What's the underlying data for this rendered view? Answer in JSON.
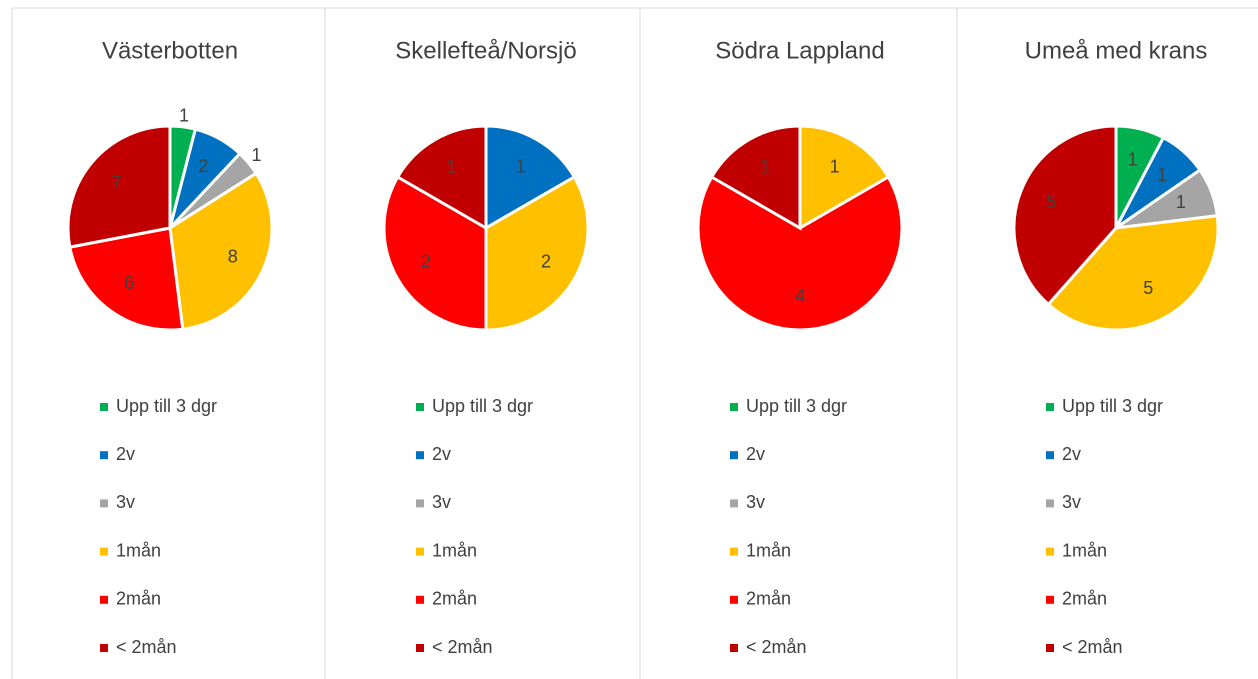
{
  "chart_data": [
    {
      "type": "pie",
      "title": "Västerbotten",
      "categories": [
        "Upp till 3 dgr",
        "2v",
        "3v",
        "1mån",
        "2mån",
        "< 2mån"
      ],
      "values": [
        1,
        2,
        1,
        8,
        6,
        7
      ],
      "colors": [
        "#00b050",
        "#0070c0",
        "#a5a5a5",
        "#ffc000",
        "#ff0000",
        "#c00000"
      ]
    },
    {
      "type": "pie",
      "title": "Skellefteå/Norsjö",
      "categories": [
        "Upp till 3 dgr",
        "2v",
        "3v",
        "1mån",
        "2mån",
        "< 2mån"
      ],
      "values": [
        0,
        1,
        0,
        2,
        2,
        1
      ],
      "colors": [
        "#00b050",
        "#0070c0",
        "#a5a5a5",
        "#ffc000",
        "#ff0000",
        "#c00000"
      ]
    },
    {
      "type": "pie",
      "title": "Södra Lappland",
      "categories": [
        "Upp till 3 dgr",
        "2v",
        "3v",
        "1mån",
        "2mån",
        "< 2mån"
      ],
      "values": [
        0,
        0,
        0,
        1,
        4,
        1
      ],
      "colors": [
        "#00b050",
        "#0070c0",
        "#a5a5a5",
        "#ffc000",
        "#ff0000",
        "#c00000"
      ]
    },
    {
      "type": "pie",
      "title": "Umeå med krans",
      "categories": [
        "Upp till 3 dgr",
        "2v",
        "3v",
        "1mån",
        "2mån",
        "< 2mån"
      ],
      "values": [
        1,
        1,
        1,
        5,
        0,
        5
      ],
      "colors": [
        "#00b050",
        "#0070c0",
        "#a5a5a5",
        "#ffc000",
        "#ff0000",
        "#c00000"
      ]
    }
  ]
}
